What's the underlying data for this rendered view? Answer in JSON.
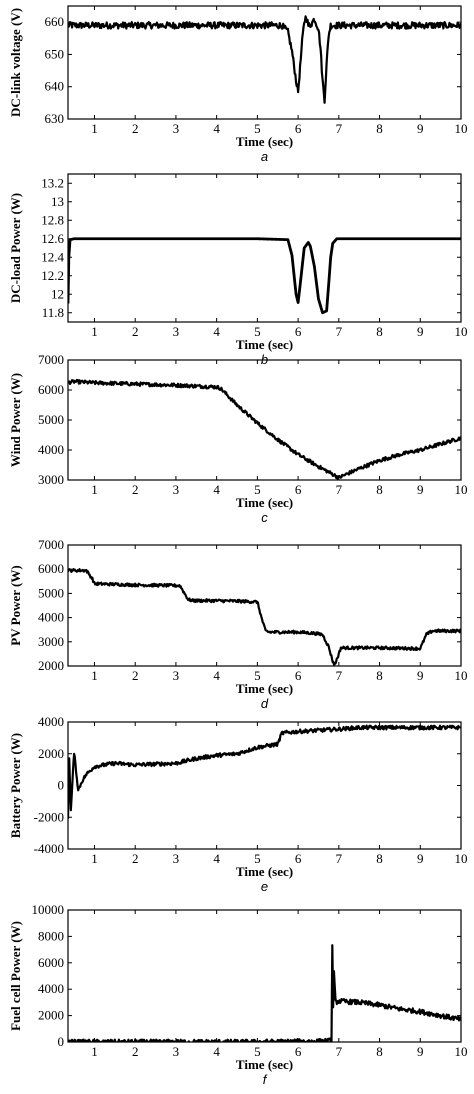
{
  "chart_data": [
    {
      "type": "line",
      "panel_label": "a",
      "xlabel": "Time (sec)",
      "ylabel": "DC-link voltage (V)",
      "xlim": [
        0.35,
        10
      ],
      "ylim": [
        630,
        665
      ],
      "xticks": [
        "1",
        "2",
        "3",
        "4",
        "5",
        "6",
        "7",
        "8",
        "9",
        "10"
      ],
      "yticks": [
        "630",
        "640",
        "650",
        "660"
      ],
      "grid": false,
      "series": [
        {
          "x": [
            0.35,
            0.5,
            1,
            2,
            3,
            4,
            5,
            5.6,
            5.75,
            5.85,
            5.95,
            6.0,
            6.05,
            6.1,
            6.15,
            6.2,
            6.25,
            6.3,
            6.4,
            6.5,
            6.55,
            6.6,
            6.65,
            6.7,
            6.75,
            6.8,
            6.9,
            7,
            8,
            9,
            10
          ],
          "y": [
            659,
            659,
            659,
            659,
            659,
            659,
            659,
            659,
            657,
            651,
            642,
            638.5,
            646,
            654,
            660,
            662,
            659,
            659,
            661,
            658,
            652,
            642,
            636,
            647,
            656,
            659,
            659,
            659,
            659,
            659,
            659
          ],
          "noise": 1.0
        }
      ]
    },
    {
      "type": "line",
      "panel_label": "b",
      "xlabel": "Time (sec)",
      "ylabel": "DC-load Power (W)",
      "xlim": [
        0.35,
        10
      ],
      "ylim": [
        11.7,
        13.3
      ],
      "xticks": [
        "1",
        "2",
        "3",
        "4",
        "5",
        "6",
        "7",
        "8",
        "9",
        "10"
      ],
      "yticks": [
        "11.8",
        "12",
        "12.2",
        "12.4",
        "12.6",
        "12.8",
        "13",
        "13.2"
      ],
      "grid": false,
      "series": [
        {
          "x": [
            0.35,
            0.37,
            0.4,
            0.5,
            1,
            2,
            3,
            4,
            5,
            5.75,
            5.85,
            5.95,
            6.0,
            6.05,
            6.15,
            6.25,
            6.3,
            6.4,
            6.5,
            6.6,
            6.7,
            6.75,
            6.8,
            6.85,
            6.95,
            7.1,
            8,
            9,
            10
          ],
          "y": [
            11.9,
            12.4,
            12.59,
            12.6,
            12.6,
            12.6,
            12.6,
            12.6,
            12.6,
            12.59,
            12.42,
            12.0,
            11.91,
            12.1,
            12.5,
            12.56,
            12.52,
            12.3,
            11.95,
            11.8,
            11.82,
            12.1,
            12.4,
            12.55,
            12.6,
            12.6,
            12.6,
            12.6,
            12.6
          ],
          "noise": 0
        }
      ]
    },
    {
      "type": "line",
      "panel_label": "c",
      "xlabel": "Time (sec)",
      "ylabel": "Wind Power (W)",
      "xlim": [
        0.35,
        10
      ],
      "ylim": [
        3000,
        7000
      ],
      "xticks": [
        "1",
        "2",
        "3",
        "4",
        "5",
        "6",
        "7",
        "8",
        "9",
        "10"
      ],
      "yticks": [
        "3000",
        "4000",
        "5000",
        "6000",
        "7000"
      ],
      "grid": false,
      "series": [
        {
          "x": [
            0.35,
            0.5,
            1,
            2,
            3,
            4,
            4.1,
            4.5,
            5,
            5.5,
            6,
            6.5,
            7,
            7.5,
            8,
            8.5,
            9,
            9.5,
            10
          ],
          "y": [
            6250,
            6280,
            6240,
            6200,
            6160,
            6100,
            6050,
            5500,
            4900,
            4350,
            3850,
            3450,
            3080,
            3380,
            3650,
            3850,
            4000,
            4200,
            4400
          ],
          "noise": 60
        }
      ]
    },
    {
      "type": "line",
      "panel_label": "d",
      "xlabel": "Time (sec)",
      "ylabel": "PV Power (W)",
      "xlim": [
        0.35,
        10
      ],
      "ylim": [
        2000,
        7000
      ],
      "xticks": [
        "1",
        "2",
        "3",
        "4",
        "5",
        "6",
        "7",
        "8",
        "9",
        "10"
      ],
      "yticks": [
        "2000",
        "3000",
        "4000",
        "5000",
        "6000",
        "7000"
      ],
      "grid": false,
      "series": [
        {
          "x": [
            0.35,
            0.8,
            0.95,
            1.0,
            2,
            3.1,
            3.3,
            3.4,
            4,
            4.5,
            5,
            5.1,
            5.2,
            5.3,
            6,
            6.4,
            6.6,
            6.75,
            6.85,
            6.9,
            7.0,
            7.05,
            7.1,
            8,
            9.0,
            9.15,
            9.3,
            10
          ],
          "y": [
            5950,
            5950,
            5600,
            5400,
            5350,
            5320,
            4750,
            4700,
            4700,
            4680,
            4650,
            4000,
            3450,
            3400,
            3400,
            3350,
            3300,
            2800,
            2200,
            2050,
            2500,
            2750,
            2750,
            2750,
            2720,
            3300,
            3450,
            3450
          ],
          "noise": 60
        }
      ]
    },
    {
      "type": "line",
      "panel_label": "e",
      "xlabel": "Time (sec)",
      "ylabel": "Battery Power (W)",
      "xlim": [
        0.35,
        10
      ],
      "ylim": [
        -4000,
        4000
      ],
      "xticks": [
        "1",
        "2",
        "3",
        "4",
        "5",
        "6",
        "7",
        "8",
        "9",
        "10"
      ],
      "yticks": [
        "-4000",
        "-2000",
        "0",
        "2000",
        "4000"
      ],
      "grid": false,
      "series": [
        {
          "x": [
            0.35,
            0.38,
            0.42,
            0.5,
            0.6,
            0.7,
            0.8,
            1,
            1.5,
            2,
            3,
            3.5,
            4,
            4.5,
            5,
            5.5,
            5.6,
            6,
            7,
            7.5,
            8,
            9,
            10
          ],
          "y": [
            -2100,
            1800,
            -1600,
            2100,
            -300,
            300,
            700,
            1200,
            1400,
            1300,
            1400,
            1700,
            1900,
            2000,
            2400,
            2600,
            3300,
            3400,
            3550,
            3650,
            3650,
            3650,
            3650
          ],
          "noise": 120
        }
      ]
    },
    {
      "type": "line",
      "panel_label": "f",
      "xlabel": "Time (sec)",
      "ylabel": "Fuel cell Power (W)",
      "xlim": [
        0.35,
        10
      ],
      "ylim": [
        0,
        10000
      ],
      "xticks": [
        "1",
        "2",
        "3",
        "4",
        "5",
        "6",
        "7",
        "8",
        "9",
        "10"
      ],
      "yticks": [
        "0",
        "2000",
        "4000",
        "6000",
        "8000",
        "10000"
      ],
      "grid": false,
      "series": [
        {
          "x": [
            0.35,
            5,
            6.5,
            6.82,
            6.84,
            6.86,
            6.88,
            6.92,
            7,
            7.5,
            8,
            8.5,
            9,
            9.5,
            10
          ],
          "y": [
            0,
            0,
            50,
            100,
            7300,
            2800,
            5200,
            3000,
            3100,
            3000,
            2800,
            2500,
            2300,
            2000,
            1700
          ],
          "noise": 180
        }
      ]
    }
  ]
}
